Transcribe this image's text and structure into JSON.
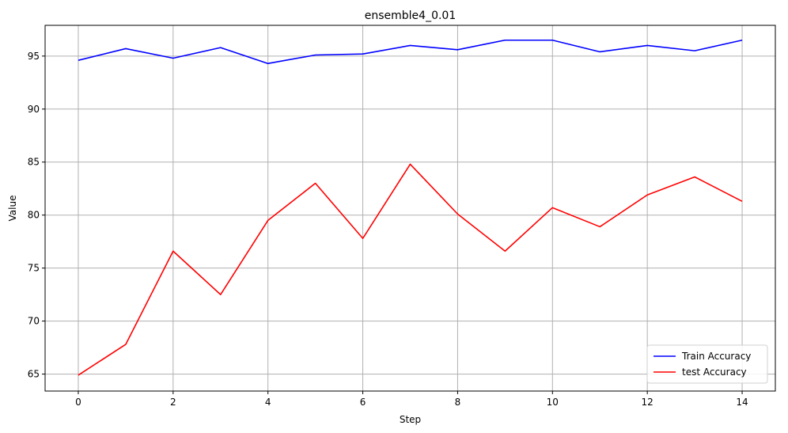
{
  "chart_data": {
    "type": "line",
    "title": "ensemble4_0.01",
    "xlabel": "Step",
    "ylabel": "Value",
    "x": [
      0,
      1,
      2,
      3,
      4,
      5,
      6,
      7,
      8,
      9,
      10,
      11,
      12,
      13,
      14
    ],
    "xlim": [
      -0.7,
      14.7
    ],
    "ylim": [
      63.4,
      97.9
    ],
    "xticks": [
      0,
      2,
      4,
      6,
      8,
      10,
      12,
      14
    ],
    "yticks": [
      65,
      70,
      75,
      80,
      85,
      90,
      95
    ],
    "grid": true,
    "legend": "lower-right",
    "series": [
      {
        "name": "Train Accuracy",
        "color": "#0000ff",
        "values": [
          94.6,
          95.7,
          94.8,
          95.8,
          94.3,
          95.1,
          95.2,
          96.0,
          95.6,
          96.5,
          96.5,
          95.4,
          96.0,
          95.5,
          96.5
        ]
      },
      {
        "name": "test Accuracy",
        "color": "#ff0000",
        "values": [
          64.9,
          67.8,
          76.6,
          72.5,
          79.5,
          83.0,
          77.8,
          84.8,
          80.1,
          76.6,
          80.7,
          78.9,
          81.9,
          83.6,
          81.3
        ]
      }
    ]
  }
}
